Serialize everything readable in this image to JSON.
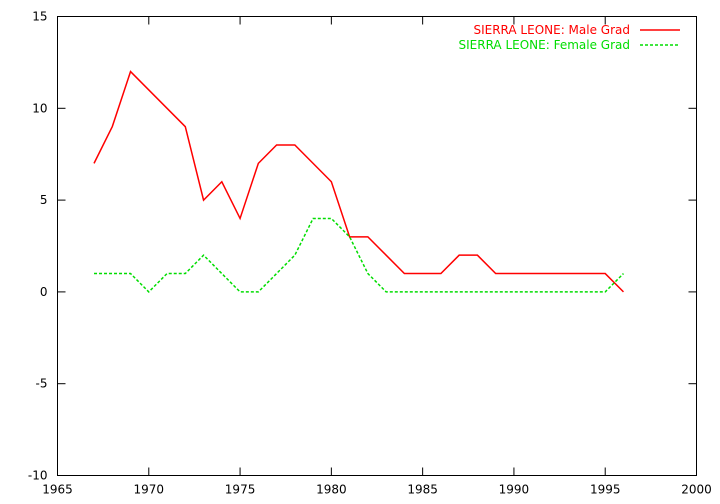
{
  "chart_data": {
    "type": "line",
    "xlim": [
      1965,
      2000
    ],
    "ylim": [
      -10,
      15
    ],
    "xticks": [
      1965,
      1970,
      1975,
      1980,
      1985,
      1990,
      1995,
      2000
    ],
    "yticks": [
      -10,
      -5,
      0,
      5,
      10,
      15
    ],
    "grid": false,
    "legend_position": "top-right",
    "x": [
      1967,
      1968,
      1969,
      1970,
      1971,
      1972,
      1973,
      1974,
      1975,
      1976,
      1977,
      1978,
      1979,
      1980,
      1981,
      1982,
      1983,
      1984,
      1985,
      1986,
      1987,
      1988,
      1989,
      1990,
      1991,
      1992,
      1993,
      1994,
      1995,
      1996
    ],
    "series": [
      {
        "name": "SIERRA LEONE: Male Grad",
        "color": "#ff0000",
        "dash": "solid",
        "values": [
          7,
          9,
          12,
          11,
          10,
          9,
          5,
          6,
          4,
          7,
          8,
          8,
          7,
          6,
          3,
          3,
          2,
          1,
          1,
          1,
          2,
          2,
          1,
          1,
          1,
          1,
          1,
          1,
          1,
          0
        ]
      },
      {
        "name": "SIERRA LEONE: Female Grad",
        "color": "#00dd00",
        "dash": "dashed",
        "values": [
          1,
          1,
          1,
          0,
          1,
          1,
          2,
          1,
          0,
          0,
          1,
          2,
          4,
          4,
          3,
          1,
          0,
          0,
          0,
          0,
          0,
          0,
          0,
          0,
          0,
          0,
          0,
          0,
          0,
          1
        ]
      }
    ]
  }
}
